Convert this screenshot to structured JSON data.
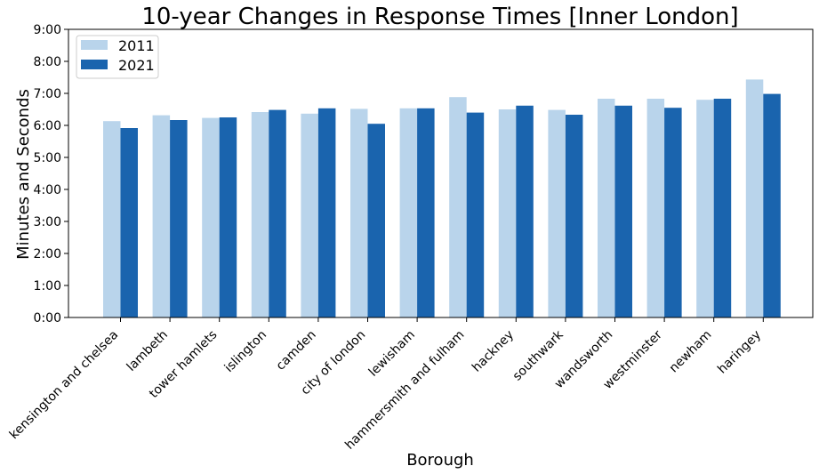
{
  "colors": {
    "series_2011": "#b9d4eb",
    "series_2021": "#1a64ae"
  },
  "chart_data": {
    "type": "bar",
    "title": "10-year Changes in Response Times [Inner London]",
    "xlabel": "Borough",
    "ylabel": "Minutes and Seconds",
    "ylim": [
      0,
      540
    ],
    "y_unit": "seconds",
    "yticks": [
      0,
      60,
      120,
      180,
      240,
      300,
      360,
      420,
      480,
      540
    ],
    "ytick_labels": [
      "0:00",
      "1:00",
      "2:00",
      "3:00",
      "4:00",
      "5:00",
      "6:00",
      "7:00",
      "8:00",
      "9:00"
    ],
    "grid": false,
    "legend_position": "top-left",
    "categories": [
      "kensington and chelsea",
      "lambeth",
      "tower hamlets",
      "islington",
      "camden",
      "city of london",
      "lewisham",
      "hammersmith and fulham",
      "hackney",
      "southwark",
      "wandsworth",
      "westminster",
      "newham",
      "haringey"
    ],
    "series": [
      {
        "name": "2011",
        "values": [
          368,
          379,
          374,
          385,
          382,
          391,
          392,
          413,
          390,
          389,
          410,
          410,
          408,
          446
        ]
      },
      {
        "name": "2021",
        "values": [
          355,
          370,
          375,
          389,
          392,
          363,
          392,
          384,
          397,
          380,
          397,
          393,
          410,
          419
        ]
      }
    ]
  }
}
